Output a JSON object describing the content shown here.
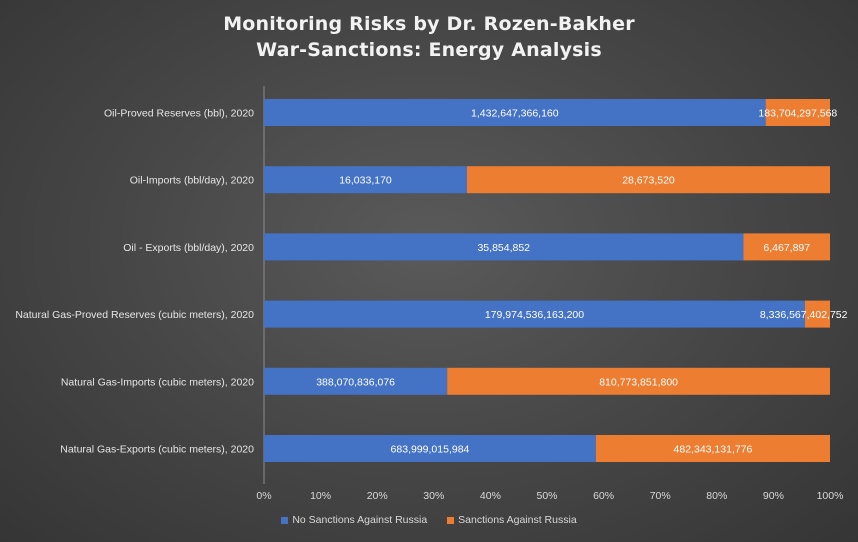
{
  "chart_data": {
    "type": "bar",
    "orientation": "horizontal",
    "stacking": "percent",
    "title": "Monitoring Risks by Dr. Rozen-Bakher",
    "subtitle": "War-Sanctions: Energy Analysis",
    "categories": [
      "Oil-Proved Reserves (bbl), 2020",
      "Oil-Imports (bbl/day), 2020",
      "Oil - Exports (bbl/day), 2020",
      "Natural Gas-Proved Reserves (cubic meters), 2020",
      "Natural Gas-Imports (cubic meters), 2020",
      "Natural Gas-Exports (cubic meters),  2020"
    ],
    "series": [
      {
        "name": "No Sanctions Against Russia",
        "color": "#4472C4",
        "values": [
          1432647366160,
          16033170,
          35854852,
          179974536163200,
          388070836076,
          683999015984
        ],
        "labels": [
          "1,432,647,366,160",
          "16,033,170",
          "35,854,852",
          "179,974,536,163,200",
          "388,070,836,076",
          "683,999,015,984"
        ]
      },
      {
        "name": "Sanctions Against Russia",
        "color": "#ED7D31",
        "values": [
          183704297568,
          28673520,
          6467897,
          8336567402752,
          810773851800,
          482343131776
        ],
        "labels": [
          "183,704,297,568",
          "28,673,520",
          "6,467,897",
          "8,336,567,402,752",
          "810,773,851,800",
          "482,343,131,776"
        ]
      }
    ],
    "x_ticks": [
      "0%",
      "10%",
      "20%",
      "30%",
      "40%",
      "50%",
      "60%",
      "70%",
      "80%",
      "90%",
      "100%"
    ],
    "xlim": [
      0,
      100
    ],
    "grid": false,
    "legend_position": "bottom"
  }
}
